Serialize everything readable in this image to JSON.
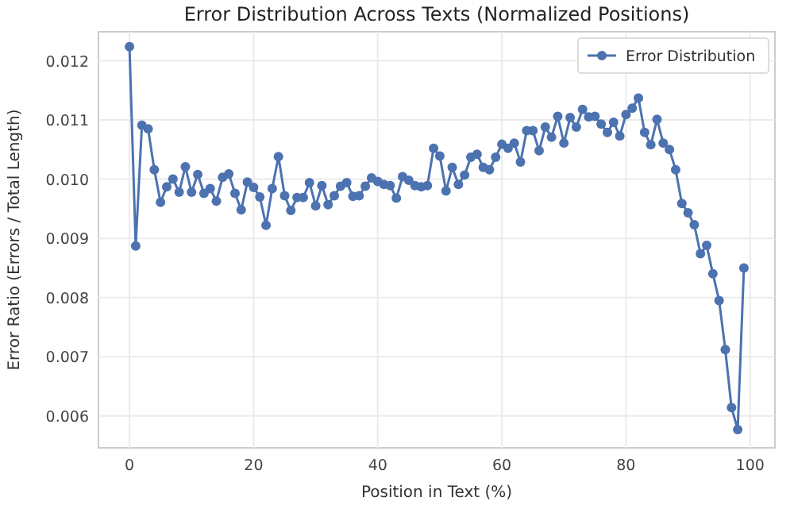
{
  "chart_data": {
    "type": "line",
    "title": "Error Distribution Across Texts (Normalized Positions)",
    "xlabel": "Position in Text (%)",
    "ylabel": "Error Ratio (Errors / Total Length)",
    "x": [
      0,
      1,
      2,
      3,
      4,
      5,
      6,
      7,
      8,
      9,
      10,
      11,
      12,
      13,
      14,
      15,
      16,
      17,
      18,
      19,
      20,
      21,
      22,
      23,
      24,
      25,
      26,
      27,
      28,
      29,
      30,
      31,
      32,
      33,
      34,
      35,
      36,
      37,
      38,
      39,
      40,
      41,
      42,
      43,
      44,
      45,
      46,
      47,
      48,
      49,
      50,
      51,
      52,
      53,
      54,
      55,
      56,
      57,
      58,
      59,
      60,
      61,
      62,
      63,
      64,
      65,
      66,
      67,
      68,
      69,
      70,
      71,
      72,
      73,
      74,
      75,
      76,
      77,
      78,
      79,
      80,
      81,
      82,
      83,
      84,
      85,
      86,
      87,
      88,
      89,
      90,
      91,
      92,
      93,
      94,
      95,
      96,
      97,
      98,
      99
    ],
    "series": [
      {
        "name": "Error Distribution",
        "color": "#4c72b0",
        "values": [
          0.01224,
          0.00887,
          0.01091,
          0.01085,
          0.01016,
          0.00961,
          0.00987,
          0.01,
          0.00978,
          0.01021,
          0.00978,
          0.01008,
          0.00976,
          0.00984,
          0.00963,
          0.01003,
          0.01009,
          0.00976,
          0.00948,
          0.00995,
          0.00986,
          0.0097,
          0.00922,
          0.00984,
          0.01038,
          0.00972,
          0.00947,
          0.00969,
          0.00969,
          0.00994,
          0.00955,
          0.00989,
          0.00957,
          0.00972,
          0.00988,
          0.00994,
          0.00971,
          0.00972,
          0.00988,
          0.01002,
          0.00996,
          0.00991,
          0.00989,
          0.00968,
          0.01004,
          0.00998,
          0.00989,
          0.00987,
          0.00989,
          0.01052,
          0.01039,
          0.0098,
          0.0102,
          0.00991,
          0.01007,
          0.01037,
          0.01042,
          0.0102,
          0.01016,
          0.01037,
          0.01059,
          0.01052,
          0.01061,
          0.01029,
          0.01082,
          0.01082,
          0.01048,
          0.01088,
          0.01071,
          0.01106,
          0.01061,
          0.01104,
          0.01088,
          0.01118,
          0.01105,
          0.01106,
          0.01093,
          0.01079,
          0.01096,
          0.01073,
          0.01109,
          0.0112,
          0.01137,
          0.01079,
          0.01058,
          0.01101,
          0.01061,
          0.0105,
          0.01016,
          0.00959,
          0.00943,
          0.00923,
          0.00874,
          0.00888,
          0.0084,
          0.00795,
          0.00712,
          0.00614,
          0.00577,
          0.0085
        ]
      }
    ],
    "xlim": [
      -5,
      104
    ],
    "ylim": [
      0.00546,
      0.01249
    ],
    "xticks": [
      0,
      20,
      40,
      60,
      80,
      100
    ],
    "yticks": [
      {
        "value": 0.006,
        "label": "0.006"
      },
      {
        "value": 0.007,
        "label": "0.007"
      },
      {
        "value": 0.008,
        "label": "0.008"
      },
      {
        "value": 0.009,
        "label": "0.009"
      },
      {
        "value": 0.01,
        "label": "0.010"
      },
      {
        "value": 0.011,
        "label": "0.011"
      },
      {
        "value": 0.012,
        "label": "0.012"
      }
    ],
    "grid": true,
    "legend": "top right",
    "marker": "circle",
    "line_style": "solid"
  }
}
